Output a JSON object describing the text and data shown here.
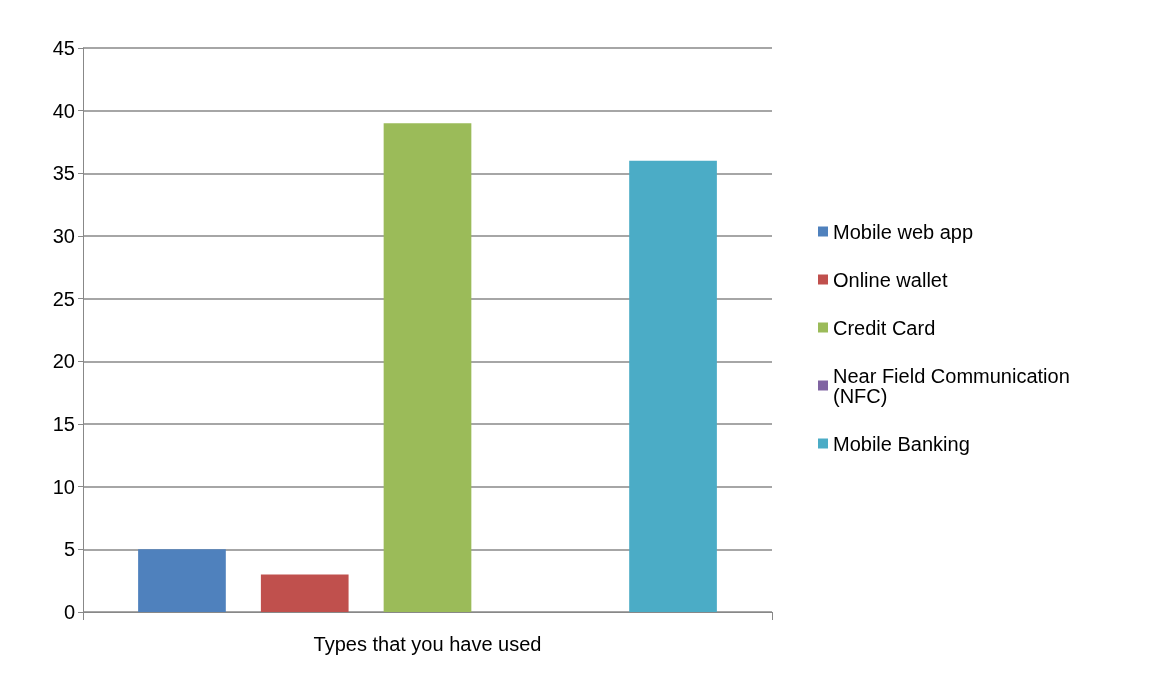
{
  "chart_data": {
    "type": "bar",
    "categories": [
      "Types that you have used"
    ],
    "series": [
      {
        "name": "Mobile web app",
        "color": "#4f81bd",
        "values": [
          5
        ]
      },
      {
        "name": "Online wallet",
        "color": "#c0504d",
        "values": [
          3
        ]
      },
      {
        "name": "Credit Card",
        "color": "#9bbb59",
        "values": [
          39
        ]
      },
      {
        "name": "Near Field Communication (NFC)",
        "color": "#8064a2",
        "values": [
          0
        ]
      },
      {
        "name": "Mobile Banking",
        "color": "#4bacc6",
        "values": [
          36
        ]
      }
    ],
    "ylim": [
      0,
      45
    ],
    "yticks": [
      0,
      5,
      10,
      15,
      20,
      25,
      30,
      35,
      40,
      45
    ],
    "grid": "y",
    "legend": "right"
  }
}
